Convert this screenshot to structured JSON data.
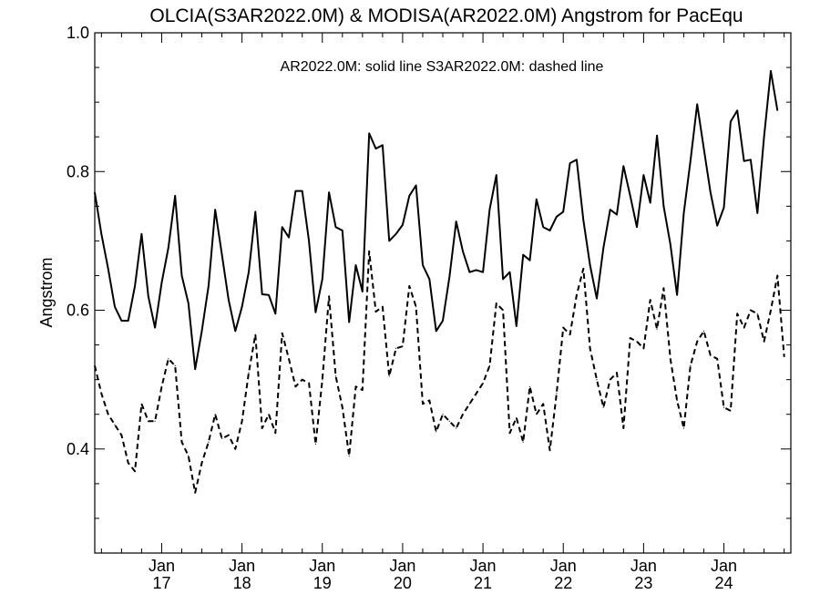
{
  "chart_data": {
    "type": "line",
    "title": "OLCIA(S3AR2022.0M) & MODISA(AR2022.0M)  Angstrom for PacEqu",
    "annotation": "AR2022.0M: solid line   S3AR2022.0M: dashed line",
    "xlabel": "",
    "ylabel": "Angstrom",
    "xlim": [
      "2016-03",
      "2024-11"
    ],
    "ylim": [
      0.25,
      1.0
    ],
    "yticks": [
      "0.4",
      "0.6",
      "0.8",
      "1.0"
    ],
    "xticks": [
      {
        "date": "2017-01",
        "month": "Jan",
        "year": "17"
      },
      {
        "date": "2018-01",
        "month": "Jan",
        "year": "18"
      },
      {
        "date": "2019-01",
        "month": "Jan",
        "year": "19"
      },
      {
        "date": "2020-01",
        "month": "Jan",
        "year": "20"
      },
      {
        "date": "2021-01",
        "month": "Jan",
        "year": "21"
      },
      {
        "date": "2022-01",
        "month": "Jan",
        "year": "22"
      },
      {
        "date": "2023-01",
        "month": "Jan",
        "year": "23"
      },
      {
        "date": "2024-01",
        "month": "Jan",
        "year": "24"
      }
    ],
    "grid": false,
    "series": [
      {
        "style": "solid",
        "start": "2016-03",
        "values": [
          0.77,
          0.71,
          0.66,
          0.605,
          0.585,
          0.585,
          0.635,
          0.71,
          0.62,
          0.575,
          0.64,
          0.69,
          0.765,
          0.65,
          0.61,
          0.515,
          0.57,
          0.635,
          0.745,
          0.68,
          0.615,
          0.57,
          0.605,
          0.655,
          0.742,
          0.623,
          0.622,
          0.595,
          0.72,
          0.705,
          0.772,
          0.772,
          0.7,
          0.597,
          0.645,
          0.77,
          0.72,
          0.715,
          0.583,
          0.665,
          0.627,
          0.855,
          0.833,
          0.838,
          0.7,
          0.71,
          0.723,
          0.765,
          0.78,
          0.665,
          0.645,
          0.57,
          0.585,
          0.648,
          0.728,
          0.685,
          0.655,
          0.658,
          0.655,
          0.745,
          0.795,
          0.645,
          0.655,
          0.577,
          0.68,
          0.672,
          0.76,
          0.72,
          0.715,
          0.735,
          0.742,
          0.812,
          0.817,
          0.73,
          0.665,
          0.617,
          0.69,
          0.745,
          0.738,
          0.808,
          0.765,
          0.72,
          0.795,
          0.755,
          0.852,
          0.75,
          0.695,
          0.622,
          0.74,
          0.815,
          0.897,
          0.833,
          0.77,
          0.722,
          0.748,
          0.872,
          0.888,
          0.815,
          0.817,
          0.74,
          0.85,
          0.945,
          0.888
        ]
      },
      {
        "style": "dashed",
        "start": "2016-03",
        "values": [
          0.52,
          0.48,
          0.45,
          0.435,
          0.42,
          0.38,
          0.368,
          0.465,
          0.44,
          0.44,
          0.49,
          0.53,
          0.52,
          0.41,
          0.39,
          0.337,
          0.38,
          0.41,
          0.45,
          0.415,
          0.42,
          0.4,
          0.44,
          0.51,
          0.565,
          0.43,
          0.45,
          0.423,
          0.567,
          0.53,
          0.49,
          0.5,
          0.495,
          0.407,
          0.5,
          0.62,
          0.505,
          0.46,
          0.39,
          0.49,
          0.485,
          0.685,
          0.598,
          0.605,
          0.505,
          0.545,
          0.548,
          0.635,
          0.605,
          0.465,
          0.47,
          0.425,
          0.45,
          0.44,
          0.43,
          0.45,
          0.465,
          0.48,
          0.495,
          0.52,
          0.61,
          0.6,
          0.423,
          0.445,
          0.41,
          0.49,
          0.45,
          0.465,
          0.398,
          0.48,
          0.575,
          0.565,
          0.622,
          0.66,
          0.545,
          0.5,
          0.46,
          0.5,
          0.51,
          0.43,
          0.56,
          0.555,
          0.545,
          0.615,
          0.573,
          0.632,
          0.53,
          0.47,
          0.43,
          0.52,
          0.555,
          0.57,
          0.535,
          0.53,
          0.46,
          0.455,
          0.595,
          0.575,
          0.6,
          0.595,
          0.555,
          0.6,
          0.65,
          0.533
        ]
      }
    ]
  }
}
